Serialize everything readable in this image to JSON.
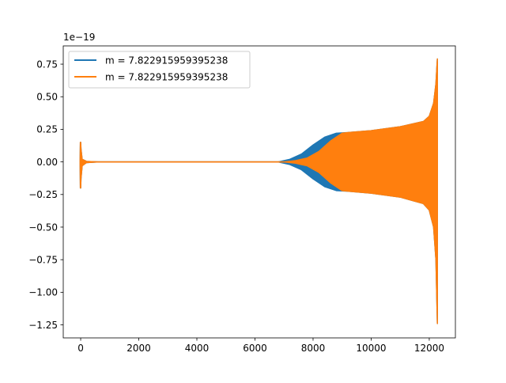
{
  "chart_data": {
    "type": "line",
    "offset_label": "1e−19",
    "xlim": [
      -600,
      12900
    ],
    "ylim": [
      -1.35,
      0.89
    ],
    "x_ticks": [
      {
        "value": 0,
        "label": "0"
      },
      {
        "value": 2000,
        "label": "2000"
      },
      {
        "value": 4000,
        "label": "4000"
      },
      {
        "value": 6000,
        "label": "6000"
      },
      {
        "value": 8000,
        "label": "8000"
      },
      {
        "value": 10000,
        "label": "10000"
      },
      {
        "value": 12000,
        "label": "12000"
      }
    ],
    "y_ticks": [
      {
        "value": 0.75,
        "label": "0.75"
      },
      {
        "value": 0.5,
        "label": "0.50"
      },
      {
        "value": 0.25,
        "label": "0.25"
      },
      {
        "value": 0.0,
        "label": "0.00"
      },
      {
        "value": -0.25,
        "label": "−0.25"
      },
      {
        "value": -0.5,
        "label": "−0.50"
      },
      {
        "value": -0.75,
        "label": "−0.75"
      },
      {
        "value": -1.0,
        "label": "−1.00"
      },
      {
        "value": -1.25,
        "label": "−1.25"
      }
    ],
    "legend_position": "top-left",
    "series": [
      {
        "name": "m = 7.822915959395238",
        "color": "#1f77b4",
        "upper": [
          [
            -20,
            0
          ],
          [
            -10,
            0.15
          ],
          [
            0,
            0.15
          ],
          [
            10,
            0.1
          ],
          [
            50,
            0.02
          ],
          [
            200,
            0.004
          ],
          [
            600,
            0
          ],
          [
            6800,
            0
          ],
          [
            7200,
            0.02
          ],
          [
            7600,
            0.06
          ],
          [
            8000,
            0.13
          ],
          [
            8400,
            0.19
          ],
          [
            8800,
            0.22
          ],
          [
            9200,
            0.225
          ],
          [
            10000,
            0.24
          ],
          [
            11000,
            0.27
          ],
          [
            11800,
            0.31
          ],
          [
            12000,
            0.35
          ],
          [
            12150,
            0.45
          ],
          [
            12230,
            0.6
          ],
          [
            12260,
            0.72
          ],
          [
            12280,
            0.79
          ]
        ],
        "lower": [
          [
            -20,
            0
          ],
          [
            -10,
            -0.2
          ],
          [
            0,
            -0.2
          ],
          [
            10,
            -0.13
          ],
          [
            50,
            -0.03
          ],
          [
            200,
            -0.005
          ],
          [
            600,
            0
          ],
          [
            6800,
            0
          ],
          [
            7200,
            -0.02
          ],
          [
            7600,
            -0.06
          ],
          [
            8000,
            -0.13
          ],
          [
            8400,
            -0.19
          ],
          [
            8800,
            -0.22
          ],
          [
            9200,
            -0.225
          ],
          [
            10000,
            -0.24
          ],
          [
            11000,
            -0.27
          ],
          [
            11800,
            -0.32
          ],
          [
            12000,
            -0.37
          ],
          [
            12150,
            -0.5
          ],
          [
            12230,
            -0.75
          ],
          [
            12260,
            -1.05
          ],
          [
            12280,
            -1.24
          ]
        ]
      },
      {
        "name": "m = 7.822915959395238",
        "color": "#ff7f0e",
        "upper": [
          [
            -20,
            0
          ],
          [
            -10,
            0.15
          ],
          [
            0,
            0.15
          ],
          [
            10,
            0.1
          ],
          [
            50,
            0.02
          ],
          [
            200,
            0.004
          ],
          [
            600,
            0
          ],
          [
            7000,
            0
          ],
          [
            7400,
            0.01
          ],
          [
            7800,
            0.03
          ],
          [
            8200,
            0.08
          ],
          [
            8600,
            0.16
          ],
          [
            9000,
            0.22
          ],
          [
            9200,
            0.225
          ],
          [
            10000,
            0.24
          ],
          [
            11000,
            0.27
          ],
          [
            11800,
            0.31
          ],
          [
            12000,
            0.35
          ],
          [
            12150,
            0.45
          ],
          [
            12230,
            0.6
          ],
          [
            12260,
            0.72
          ],
          [
            12280,
            0.79
          ]
        ],
        "lower": [
          [
            -20,
            0
          ],
          [
            -10,
            -0.2
          ],
          [
            0,
            -0.2
          ],
          [
            10,
            -0.13
          ],
          [
            50,
            -0.03
          ],
          [
            200,
            -0.005
          ],
          [
            600,
            0
          ],
          [
            7000,
            0
          ],
          [
            7400,
            -0.01
          ],
          [
            7800,
            -0.03
          ],
          [
            8200,
            -0.08
          ],
          [
            8600,
            -0.16
          ],
          [
            9000,
            -0.22
          ],
          [
            9200,
            -0.225
          ],
          [
            10000,
            -0.24
          ],
          [
            11000,
            -0.27
          ],
          [
            11800,
            -0.32
          ],
          [
            12000,
            -0.37
          ],
          [
            12150,
            -0.5
          ],
          [
            12230,
            -0.75
          ],
          [
            12260,
            -1.05
          ],
          [
            12280,
            -1.24
          ]
        ]
      }
    ]
  }
}
